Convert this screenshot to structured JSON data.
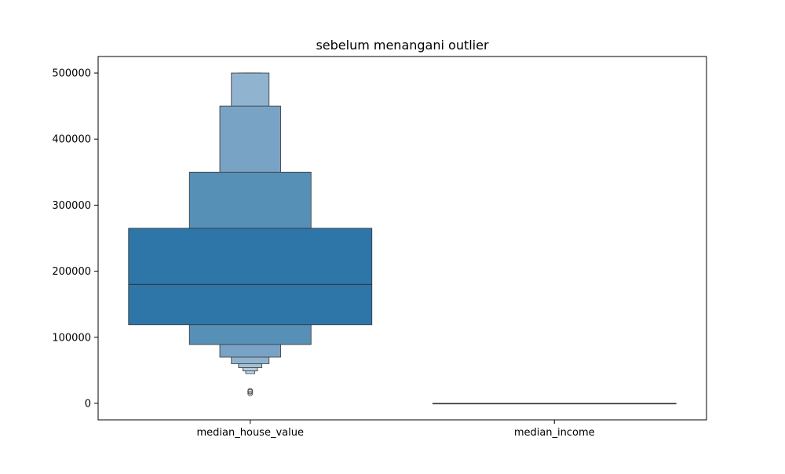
{
  "chart_data": {
    "type": "boxen",
    "title": "sebelum menangani outlier",
    "xlabel": "",
    "ylabel": "",
    "categories": [
      "median_house_value",
      "median_income"
    ],
    "ylim": [
      -25000,
      525000
    ],
    "yticks": [
      0,
      100000,
      200000,
      300000,
      400000,
      500000
    ],
    "grid": false,
    "colors": {
      "base": "#2e75a8",
      "light_steps": [
        "#2e75a8",
        "#5790b6",
        "#79a3c5",
        "#90b4cf",
        "#a4c1d8",
        "#b4cce0",
        "#c4d7e7"
      ],
      "edge": "#333333"
    },
    "series": [
      {
        "category": "median_house_value",
        "median": 180000,
        "levels": [
          {
            "low": 119000,
            "high": 265000
          },
          {
            "low": 89000,
            "high": 350000
          },
          {
            "low": 70000,
            "high": 450000
          },
          {
            "low": 60000,
            "high": 500000
          },
          {
            "low": 54000,
            "high": 500000
          },
          {
            "low": 49000,
            "high": 500000
          },
          {
            "low": 45000,
            "high": 500000
          }
        ],
        "outliers": [
          14999,
          17500,
          19000
        ]
      },
      {
        "category": "median_income",
        "median": 4,
        "levels": [
          {
            "low": 2.6,
            "high": 4.7
          }
        ],
        "outliers": []
      }
    ]
  }
}
